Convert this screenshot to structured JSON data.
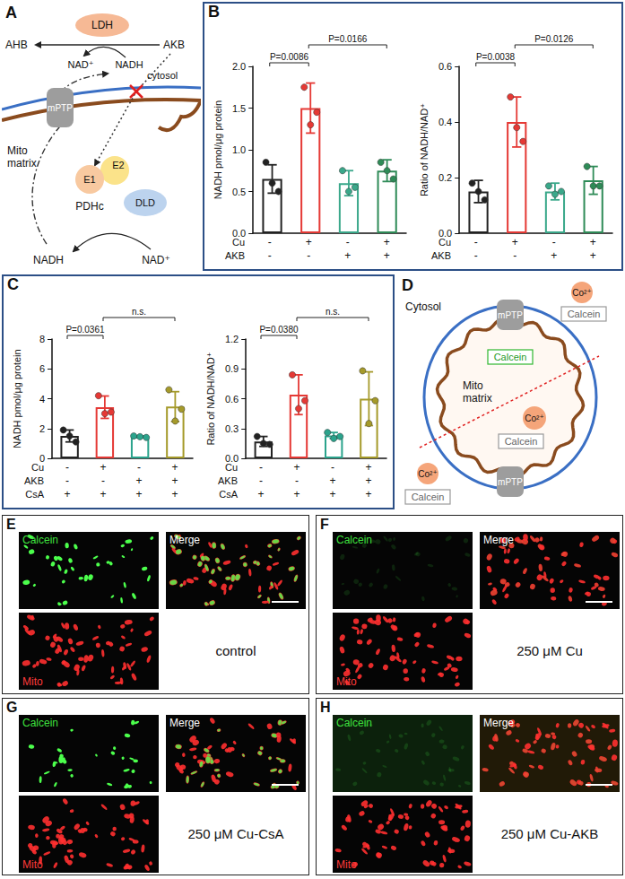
{
  "diagram_A": {
    "letter": "A",
    "ldh": "LDH",
    "ahb": "AHB",
    "akb": "AKB",
    "nad_cytosol": "NAD⁺",
    "nadh_cytosol": "NADH",
    "cytosol": "cytosol",
    "mptp": "mPTP",
    "mito_matrix": "Mito matrix",
    "e1": "E1",
    "e2": "E2",
    "pdhc": "PDHc",
    "dld": "DLD",
    "nadh_matrix": "NADH",
    "nad_matrix": "NAD⁺"
  },
  "chart_panels": [
    {
      "letter": "B"
    },
    {
      "letter": "C"
    }
  ],
  "chart_data": [
    {
      "type": "bar",
      "y_label": "NADH pmol/μg protein",
      "categories": [
        null,
        null,
        null,
        null
      ],
      "values": [
        0.65,
        1.5,
        0.6,
        0.75
      ],
      "errors": [
        0.17,
        0.3,
        0.15,
        0.13
      ],
      "points": [
        [
          0.85,
          0.6,
          0.5
        ],
        [
          1.75,
          1.3,
          1.45
        ],
        [
          0.75,
          0.5,
          0.55
        ],
        [
          0.85,
          0.75,
          0.65
        ]
      ],
      "colors": [
        "#222222",
        "#e53935",
        "#3aa88a",
        "#2e8b57"
      ],
      "ylim": [
        0,
        2
      ],
      "yticks": [
        {
          "value": 0,
          "label": "0.0"
        },
        0.5,
        {
          "value": 1,
          "label": "1.0"
        },
        1.5,
        {
          "value": 2,
          "label": "2.0"
        }
      ],
      "conditions": [
        {
          "label": "Cu",
          "signs": [
            "-",
            "+",
            "-",
            "+"
          ]
        },
        {
          "label": "AKB",
          "signs": [
            "-",
            "-",
            "+",
            "+"
          ]
        }
      ],
      "comparisons": [
        {
          "from": 0,
          "to": 1,
          "label": "P=0.0086"
        },
        {
          "from": 1,
          "to": 3,
          "label": "P=0.0166"
        }
      ],
      "grid": false,
      "tick_labels": "y"
    },
    {
      "type": "bar",
      "y_label": "Ratio of NADH/NAD⁺",
      "categories": [
        null,
        null,
        null,
        null
      ],
      "values": [
        0.15,
        0.4,
        0.15,
        0.19
      ],
      "errors": [
        0.04,
        0.09,
        0.03,
        0.05
      ],
      "points": [
        [
          0.18,
          0.15,
          0.12
        ],
        [
          0.49,
          0.38,
          0.33
        ],
        [
          0.17,
          0.14,
          0.15
        ],
        [
          0.24,
          0.17,
          0.17
        ]
      ],
      "colors": [
        "#222222",
        "#e53935",
        "#3aa88a",
        "#2e8b57"
      ],
      "ylim": [
        0,
        0.6
      ],
      "yticks": [
        {
          "value": 0,
          "label": "0.0"
        },
        0.2,
        0.4,
        0.6
      ],
      "conditions": [
        {
          "label": "Cu",
          "signs": [
            "-",
            "+",
            "-",
            "+"
          ]
        },
        {
          "label": "AKB",
          "signs": [
            "-",
            "-",
            "+",
            "+"
          ]
        }
      ],
      "comparisons": [
        {
          "from": 0,
          "to": 1,
          "label": "P=0.0038"
        },
        {
          "from": 1,
          "to": 3,
          "label": "P=0.0126"
        }
      ],
      "grid": false,
      "tick_labels": "y"
    },
    {
      "type": "bar",
      "y_label": "NADH pmol/μg protein",
      "categories": [
        null,
        null,
        null,
        null
      ],
      "values": [
        1.5,
        3.43,
        1.45,
        3.47
      ],
      "errors": [
        0.4,
        0.75,
        0.05,
        1.0
      ],
      "points": [
        [
          1.9,
          1.5,
          1.1
        ],
        [
          4.2,
          3.0,
          3.1
        ],
        [
          1.5,
          1.45,
          1.4
        ],
        [
          4.6,
          2.5,
          3.3
        ]
      ],
      "colors": [
        "#222222",
        "#e53935",
        "#2ba38c",
        "#a59a2a"
      ],
      "ylim": [
        0,
        8
      ],
      "yticks": [
        0,
        2,
        4,
        6,
        8
      ],
      "conditions": [
        {
          "label": "Cu",
          "signs": [
            "-",
            "+",
            "-",
            "+"
          ]
        },
        {
          "label": "AKB",
          "signs": [
            "-",
            "-",
            "+",
            "+"
          ]
        },
        {
          "label": "CsA",
          "signs": [
            "+",
            "+",
            "+",
            "+"
          ]
        }
      ],
      "comparisons": [
        {
          "from": 0,
          "to": 1,
          "label": "P=0.0361"
        },
        {
          "from": 1,
          "to": 3,
          "label": "n.s."
        }
      ],
      "grid": false,
      "tick_labels": "y"
    },
    {
      "type": "bar",
      "y_label": "Ratio of NADH/NAD⁺",
      "categories": [
        null,
        null,
        null,
        null
      ],
      "values": [
        0.17,
        0.64,
        0.23,
        0.6
      ],
      "errors": [
        0.05,
        0.2,
        0.03,
        0.27
      ],
      "points": [
        [
          0.22,
          0.15,
          0.14
        ],
        [
          0.84,
          0.5,
          0.58
        ],
        [
          0.26,
          0.2,
          0.22
        ],
        [
          0.88,
          0.35,
          0.58
        ]
      ],
      "colors": [
        "#222222",
        "#e53935",
        "#2ba38c",
        "#a59a2a"
      ],
      "ylim": [
        0,
        1.2
      ],
      "yticks": [
        {
          "value": 0,
          "label": "0.0"
        },
        0.3,
        0.6,
        0.9,
        1.2
      ],
      "conditions": [
        {
          "label": "Cu",
          "signs": [
            "-",
            "+",
            "-",
            "+"
          ]
        },
        {
          "label": "AKB",
          "signs": [
            "-",
            "-",
            "+",
            "+"
          ]
        },
        {
          "label": "CsA",
          "signs": [
            "+",
            "+",
            "+",
            "+"
          ]
        }
      ],
      "comparisons": [
        {
          "from": 0,
          "to": 1,
          "label": "P=0.0380"
        },
        {
          "from": 1,
          "to": 3,
          "label": "n.s."
        }
      ],
      "grid": false,
      "tick_labels": "y"
    }
  ],
  "diagram_D": {
    "letter": "D",
    "cytosol": "Cytosol",
    "mptp_top": "mPTP",
    "mptp_bottom": "mPTP",
    "calcein_matrix": "Calcein",
    "mito_matrix": "Mito matrix",
    "co_matrix": "Co²⁺",
    "calcein_quenched": "Calcein",
    "co_outside_top": "Co²⁺",
    "calcein_outside_top": "Calcein",
    "co_outside_bottom": "Co²⁺",
    "calcein_outside_bottom": "Calcein"
  },
  "image_panels": [
    {
      "letter": "E",
      "channels": [
        "Calcein",
        "Merge",
        "Mito"
      ],
      "condition": "control"
    },
    {
      "letter": "F",
      "channels": [
        "Calcein",
        "Merge",
        "Mito"
      ],
      "condition": "250 μM Cu"
    },
    {
      "letter": "G",
      "channels": [
        "Calcein",
        "Merge",
        "Mito"
      ],
      "condition": "250 μM Cu-CsA"
    },
    {
      "letter": "H",
      "channels": [
        "Calcein",
        "Merge",
        "Mito"
      ],
      "condition": "250 μM Cu-AKB"
    }
  ]
}
